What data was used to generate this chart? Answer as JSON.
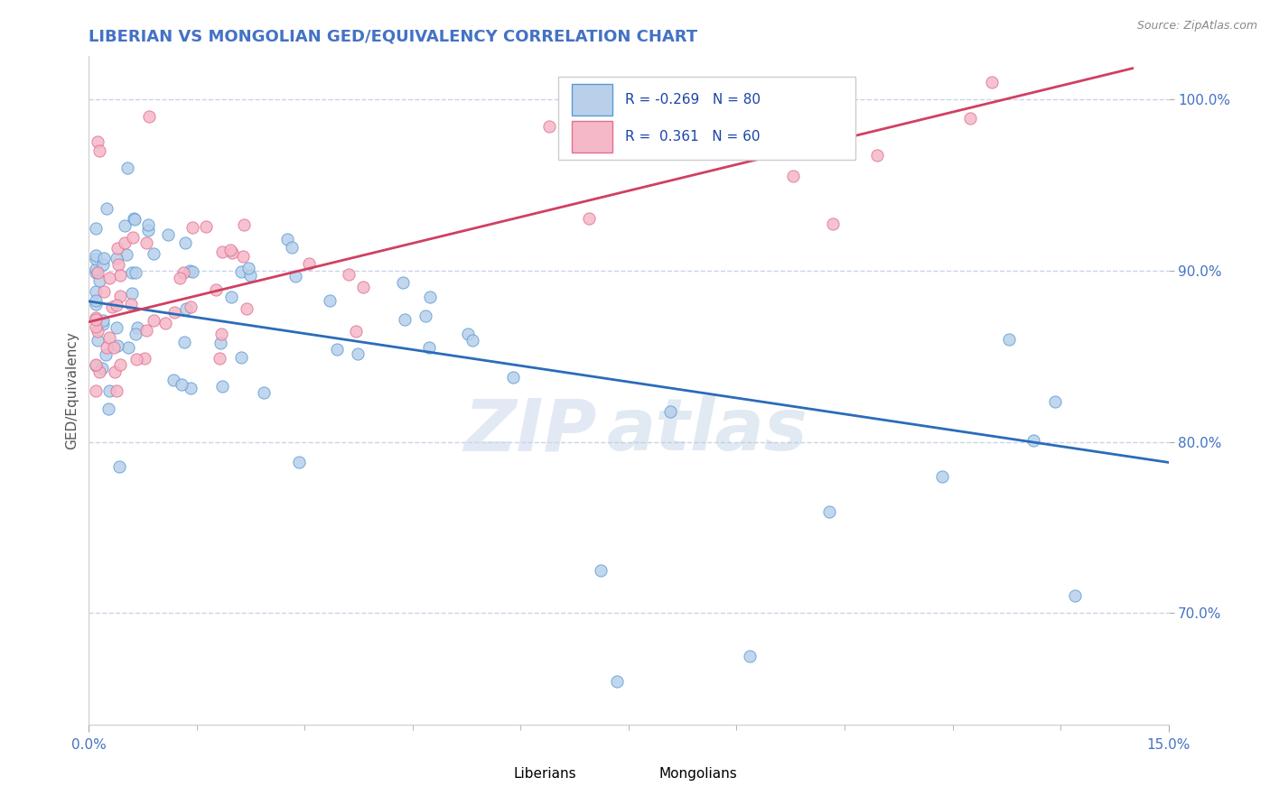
{
  "title": "LIBERIAN VS MONGOLIAN GED/EQUIVALENCY CORRELATION CHART",
  "source": "Source: ZipAtlas.com",
  "ylabel": "GED/Equivalency",
  "xlim": [
    0.0,
    0.15
  ],
  "ylim": [
    0.635,
    1.025
  ],
  "liberian_color": "#b8d0ea",
  "liberian_edge_color": "#5b9bd5",
  "mongolian_color": "#f5b8c8",
  "mongolian_edge_color": "#e07090",
  "liberian_line_color": "#2B6CB8",
  "mongolian_line_color": "#d04060",
  "liberian_R": -0.269,
  "liberian_N": 80,
  "mongolian_R": 0.361,
  "mongolian_N": 60,
  "grid_color": "#c8d4e8",
  "title_color": "#4472c4",
  "tick_color": "#4472c4",
  "watermark_zip": "ZIP",
  "watermark_atlas": "atlas",
  "legend_R_color": "#1a44aa"
}
